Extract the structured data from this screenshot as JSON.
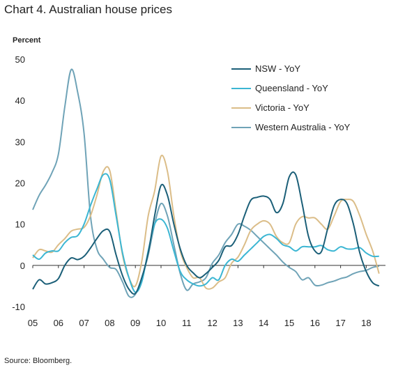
{
  "chart_data": {
    "type": "line",
    "title": "Chart 4. Australian house prices",
    "ylabel": "Percent",
    "source": "Source: Bloomberg.",
    "ylim": [
      -10,
      50
    ],
    "yticks": [
      -10,
      0,
      10,
      20,
      30,
      40,
      50
    ],
    "xlim": [
      2005.0,
      2018.75
    ],
    "xticks": [
      {
        "label": "05",
        "x": 2005.0
      },
      {
        "label": "06",
        "x": 2006.0
      },
      {
        "label": "07",
        "x": 2007.0
      },
      {
        "label": "08",
        "x": 2008.0
      },
      {
        "label": "09",
        "x": 2009.0
      },
      {
        "label": "10",
        "x": 2010.0
      },
      {
        "label": "11",
        "x": 2011.0
      },
      {
        "label": "12",
        "x": 2012.0
      },
      {
        "label": "13",
        "x": 2013.0
      },
      {
        "label": "14",
        "x": 2014.0
      },
      {
        "label": "15",
        "x": 2015.0
      },
      {
        "label": "16",
        "x": 2016.0
      },
      {
        "label": "17",
        "x": 2017.0
      },
      {
        "label": "18",
        "x": 2018.0
      }
    ],
    "grid": false,
    "legend": "top-right",
    "x": [
      2005.0,
      2005.25,
      2005.5,
      2005.75,
      2006.0,
      2006.25,
      2006.5,
      2006.75,
      2007.0,
      2007.25,
      2007.5,
      2007.75,
      2008.0,
      2008.25,
      2008.5,
      2008.75,
      2009.0,
      2009.25,
      2009.5,
      2009.75,
      2010.0,
      2010.25,
      2010.5,
      2010.75,
      2011.0,
      2011.25,
      2011.5,
      2011.75,
      2012.0,
      2012.25,
      2012.5,
      2012.75,
      2013.0,
      2013.25,
      2013.5,
      2013.75,
      2014.0,
      2014.25,
      2014.5,
      2014.75,
      2015.0,
      2015.25,
      2015.5,
      2015.75,
      2016.0,
      2016.25,
      2016.5,
      2016.75,
      2017.0,
      2017.25,
      2017.5,
      2017.75,
      2018.0,
      2018.25,
      2018.5
    ],
    "series": [
      {
        "name": "NSW -  YoY",
        "color": "#1b5f78",
        "values": [
          -5.8,
          -3.5,
          -4.5,
          -4.2,
          -3.2,
          0.0,
          1.8,
          1.4,
          2.2,
          4.2,
          6.5,
          8.4,
          8.2,
          2.5,
          -2.5,
          -5.8,
          -6.8,
          -3.0,
          3.0,
          12.0,
          19.4,
          17.0,
          10.0,
          4.0,
          0.0,
          -1.8,
          -3.0,
          -2.0,
          -0.5,
          1.2,
          4.5,
          4.8,
          7.5,
          12.0,
          15.8,
          16.5,
          16.8,
          16.0,
          12.8,
          15.0,
          21.5,
          22.0,
          15.0,
          7.0,
          3.5,
          3.3,
          9.0,
          14.5,
          16.0,
          15.0,
          10.0,
          3.0,
          -1.5,
          -4.2,
          -5.0
        ]
      },
      {
        "name": "Queensland -  YoY",
        "color": "#3bb6d3",
        "values": [
          2.5,
          1.5,
          3.0,
          3.5,
          3.5,
          5.5,
          6.8,
          7.2,
          10.0,
          14.5,
          18.5,
          22.0,
          20.8,
          12.0,
          3.0,
          -3.0,
          -6.5,
          -4.0,
          3.5,
          10.0,
          11.2,
          9.0,
          3.5,
          -1.5,
          -3.5,
          -4.5,
          -5.0,
          -4.5,
          -3.0,
          -3.5,
          0.0,
          1.5,
          1.0,
          2.5,
          4.0,
          5.5,
          7.0,
          7.5,
          6.5,
          5.0,
          4.5,
          3.5,
          4.5,
          4.5,
          4.5,
          4.8,
          3.8,
          3.5,
          4.5,
          4.0,
          4.0,
          4.3,
          3.0,
          2.2,
          2.2
        ]
      },
      {
        "name": "Victoria -  YoY",
        "color": "#dbbd88",
        "values": [
          1.8,
          3.8,
          3.5,
          3.2,
          5.0,
          6.5,
          8.3,
          8.8,
          9.2,
          12.0,
          17.0,
          22.8,
          23.0,
          13.0,
          2.5,
          -3.0,
          -5.0,
          1.0,
          12.0,
          18.0,
          26.5,
          22.8,
          12.0,
          3.5,
          -0.5,
          -3.0,
          -3.0,
          -5.5,
          -5.5,
          -4.0,
          -3.0,
          0.5,
          2.0,
          5.0,
          8.5,
          10.0,
          10.8,
          10.0,
          7.0,
          5.5,
          5.5,
          10.0,
          11.8,
          11.5,
          11.5,
          10.0,
          8.8,
          12.0,
          15.5,
          16.0,
          15.5,
          12.0,
          7.5,
          3.5,
          -2.0
        ]
      },
      {
        "name": "Western Australia -  YoY",
        "color": "#6fa3b7",
        "values": [
          13.5,
          17.0,
          19.5,
          22.5,
          27.0,
          38.5,
          47.5,
          42.0,
          32.0,
          12.0,
          4.0,
          1.5,
          -0.5,
          -1.0,
          -4.0,
          -7.5,
          -7.0,
          -3.0,
          2.5,
          10.0,
          15.0,
          12.0,
          5.0,
          -2.0,
          -6.0,
          -4.5,
          -4.0,
          -3.0,
          0.5,
          2.5,
          5.5,
          7.5,
          10.0,
          9.5,
          8.5,
          7.0,
          5.5,
          4.0,
          2.5,
          0.8,
          -0.5,
          -1.5,
          -3.5,
          -3.0,
          -4.8,
          -4.8,
          -4.2,
          -3.8,
          -3.2,
          -2.8,
          -2.0,
          -1.5,
          -1.2,
          -0.5,
          -0.2
        ]
      }
    ]
  }
}
